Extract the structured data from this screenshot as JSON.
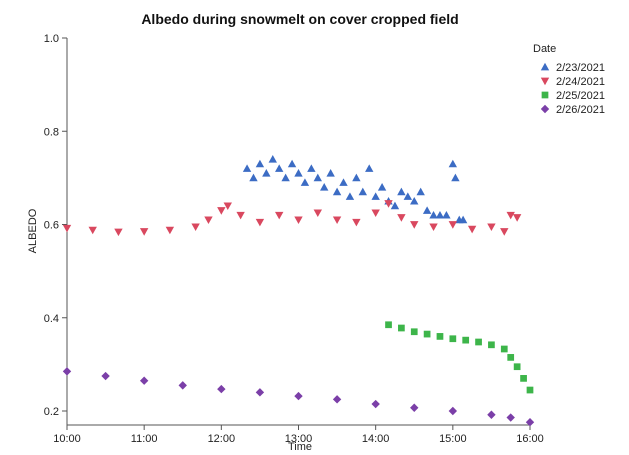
{
  "chart_data": {
    "type": "scatter",
    "title": "Albedo during snowmelt on cover cropped field",
    "xlabel": "Time",
    "ylabel": "ALBEDO",
    "xlim": [
      "10:00",
      "16:00"
    ],
    "ylim": [
      0.17,
      1.0
    ],
    "x_ticks": [
      "10:00",
      "11:00",
      "12:00",
      "13:00",
      "14:00",
      "15:00",
      "16:00"
    ],
    "y_ticks": [
      "0.2",
      "0.4",
      "0.6",
      "0.8",
      "1.0"
    ],
    "grid": false,
    "legend_title": "Date",
    "legend_position": "right",
    "series": [
      {
        "name": "2/23/2021",
        "marker": "triangle-up",
        "color": "#3c6cc4",
        "points": [
          [
            "12:20",
            0.72
          ],
          [
            "12:25",
            0.7
          ],
          [
            "12:30",
            0.73
          ],
          [
            "12:35",
            0.71
          ],
          [
            "12:40",
            0.74
          ],
          [
            "12:45",
            0.72
          ],
          [
            "12:50",
            0.7
          ],
          [
            "12:55",
            0.73
          ],
          [
            "13:00",
            0.71
          ],
          [
            "13:05",
            0.69
          ],
          [
            "13:10",
            0.72
          ],
          [
            "13:15",
            0.7
          ],
          [
            "13:20",
            0.68
          ],
          [
            "13:25",
            0.71
          ],
          [
            "13:30",
            0.67
          ],
          [
            "13:35",
            0.69
          ],
          [
            "13:40",
            0.66
          ],
          [
            "13:45",
            0.7
          ],
          [
            "13:50",
            0.67
          ],
          [
            "13:55",
            0.72
          ],
          [
            "14:00",
            0.66
          ],
          [
            "14:05",
            0.68
          ],
          [
            "14:10",
            0.65
          ],
          [
            "14:15",
            0.64
          ],
          [
            "14:20",
            0.67
          ],
          [
            "14:25",
            0.66
          ],
          [
            "14:30",
            0.65
          ],
          [
            "14:35",
            0.67
          ],
          [
            "14:40",
            0.63
          ],
          [
            "14:45",
            0.62
          ],
          [
            "14:50",
            0.62
          ],
          [
            "14:55",
            0.62
          ],
          [
            "15:00",
            0.73
          ],
          [
            "15:02",
            0.7
          ],
          [
            "15:05",
            0.61
          ],
          [
            "15:08",
            0.61
          ]
        ]
      },
      {
        "name": "2/24/2021",
        "marker": "triangle-down",
        "color": "#d9485f",
        "points": [
          [
            "10:00",
            0.592
          ],
          [
            "10:20",
            0.588
          ],
          [
            "10:40",
            0.584
          ],
          [
            "11:00",
            0.585
          ],
          [
            "11:20",
            0.588
          ],
          [
            "11:40",
            0.595
          ],
          [
            "11:50",
            0.61
          ],
          [
            "12:00",
            0.63
          ],
          [
            "12:05",
            0.64
          ],
          [
            "12:15",
            0.62
          ],
          [
            "12:30",
            0.605
          ],
          [
            "12:45",
            0.62
          ],
          [
            "13:00",
            0.61
          ],
          [
            "13:15",
            0.625
          ],
          [
            "13:30",
            0.61
          ],
          [
            "13:45",
            0.605
          ],
          [
            "14:00",
            0.625
          ],
          [
            "14:10",
            0.645
          ],
          [
            "14:20",
            0.615
          ],
          [
            "14:30",
            0.6
          ],
          [
            "14:45",
            0.595
          ],
          [
            "15:00",
            0.6
          ],
          [
            "15:15",
            0.59
          ],
          [
            "15:30",
            0.595
          ],
          [
            "15:40",
            0.585
          ],
          [
            "15:45",
            0.62
          ],
          [
            "15:50",
            0.615
          ]
        ]
      },
      {
        "name": "2/25/2021",
        "marker": "square",
        "color": "#3db54a",
        "points": [
          [
            "14:10",
            0.385
          ],
          [
            "14:20",
            0.378
          ],
          [
            "14:30",
            0.37
          ],
          [
            "14:40",
            0.365
          ],
          [
            "14:50",
            0.36
          ],
          [
            "15:00",
            0.355
          ],
          [
            "15:10",
            0.352
          ],
          [
            "15:20",
            0.348
          ],
          [
            "15:30",
            0.342
          ],
          [
            "15:40",
            0.333
          ],
          [
            "15:45",
            0.315
          ],
          [
            "15:50",
            0.295
          ],
          [
            "15:55",
            0.27
          ],
          [
            "16:00",
            0.245
          ]
        ]
      },
      {
        "name": "2/26/2021",
        "marker": "diamond",
        "color": "#7b3fa8",
        "points": [
          [
            "10:00",
            0.285
          ],
          [
            "10:30",
            0.275
          ],
          [
            "11:00",
            0.265
          ],
          [
            "11:30",
            0.255
          ],
          [
            "12:00",
            0.247
          ],
          [
            "12:30",
            0.24
          ],
          [
            "13:00",
            0.232
          ],
          [
            "13:30",
            0.225
          ],
          [
            "14:00",
            0.215
          ],
          [
            "14:30",
            0.207
          ],
          [
            "15:00",
            0.2
          ],
          [
            "15:30",
            0.192
          ],
          [
            "15:45",
            0.186
          ],
          [
            "16:00",
            0.176
          ]
        ]
      }
    ]
  }
}
